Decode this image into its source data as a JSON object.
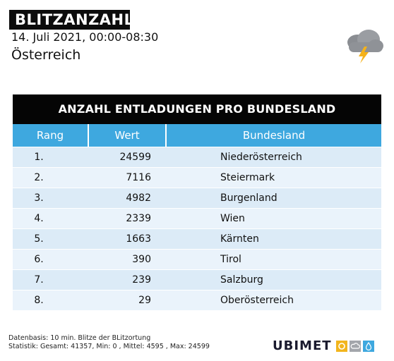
{
  "header": {
    "badge": "BLITZANZAHL",
    "subtitle": "14. Juli 2021, 00:00-08:30",
    "region": "Österreich",
    "weather_icon": "thunderstorm-cloud-icon"
  },
  "table": {
    "title": "ANZAHL ENTLADUNGEN PRO BUNDESLAND",
    "columns": [
      "Rang",
      "Wert",
      "Bundesland"
    ],
    "rows": [
      {
        "rang": "1.",
        "wert": "24599",
        "bundesland": "Niederösterreich"
      },
      {
        "rang": "2.",
        "wert": "7116",
        "bundesland": "Steiermark"
      },
      {
        "rang": "3.",
        "wert": "4982",
        "bundesland": "Burgenland"
      },
      {
        "rang": "4.",
        "wert": "2339",
        "bundesland": "Wien"
      },
      {
        "rang": "5.",
        "wert": "1663",
        "bundesland": "Kärnten"
      },
      {
        "rang": "6.",
        "wert": "390",
        "bundesland": "Tirol"
      },
      {
        "rang": "7.",
        "wert": "239",
        "bundesland": "Salzburg"
      },
      {
        "rang": "8.",
        "wert": "29",
        "bundesland": "Oberösterreich"
      }
    ]
  },
  "footer": {
    "line1": "Datenbasis: 10 min. Blitze der BLitzortung",
    "line2": "Statistik: Gesamt: 41357, Min: 0 , Mittel: 4595 , Max: 24599"
  },
  "brand": {
    "name_part1": "UBI",
    "name_part2": "MET",
    "icons": [
      "sun-icon",
      "cloud-icon",
      "drop-icon"
    ]
  },
  "colors": {
    "header_blue": "#3ea8df",
    "row_light": "#dcebf7",
    "row_lighter": "#eaf3fb",
    "badge_bg": "#0c0c0c"
  }
}
